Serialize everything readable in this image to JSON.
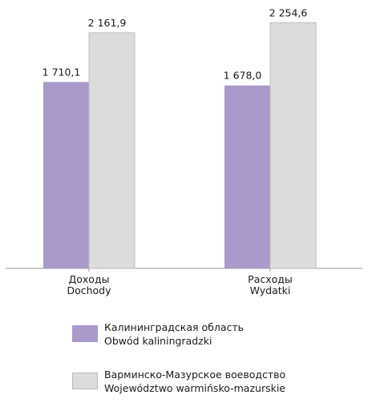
{
  "chart_data": {
    "type": "bar",
    "categories": [
      {
        "ru": "Доходы",
        "pl": "Dochody"
      },
      {
        "ru": "Расходы",
        "pl": "Wydatki"
      }
    ],
    "series": [
      {
        "name": {
          "ru": "Калининградская область",
          "pl": "Obwód kaliningradzki"
        },
        "color": "#a99acb",
        "values": [
          1710.1,
          1678.0
        ],
        "value_labels": [
          "1 710,1",
          "1 678,0"
        ]
      },
      {
        "name": {
          "ru": "Варминско-Мазурское воеводство",
          "pl": "Województwo warmińsko-mazurskie"
        },
        "color": "#dcdcdc",
        "values": [
          2161.9,
          2254.6
        ],
        "value_labels": [
          "2 161,9",
          "2 254,6"
        ]
      }
    ],
    "ylim": [
      0,
      2330
    ],
    "grid": false,
    "legend_position": "bottom"
  }
}
